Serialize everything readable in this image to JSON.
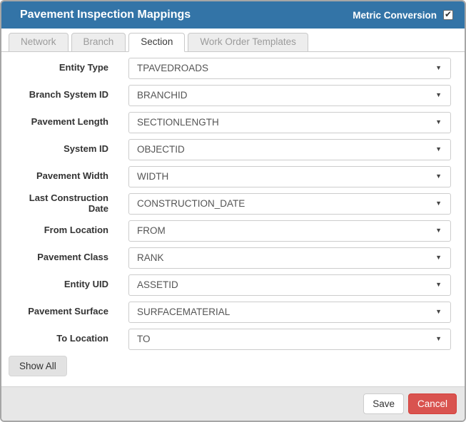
{
  "dialog": {
    "title": "Pavement Inspection Mappings",
    "metric_conversion_label": "Metric Conversion",
    "metric_conversion_checked": true
  },
  "tabs": [
    {
      "label": "Network",
      "active": false
    },
    {
      "label": "Branch",
      "active": false
    },
    {
      "label": "Section",
      "active": true
    },
    {
      "label": "Work Order Templates",
      "active": false
    }
  ],
  "form": {
    "fields": [
      {
        "label": "Entity Type",
        "value": "TPAVEDROADS"
      },
      {
        "label": "Branch System ID",
        "value": "BRANCHID"
      },
      {
        "label": "Pavement Length",
        "value": "SECTIONLENGTH"
      },
      {
        "label": "System ID",
        "value": "OBJECTID"
      },
      {
        "label": "Pavement Width",
        "value": "WIDTH"
      },
      {
        "label": "Last Construction Date",
        "value": "CONSTRUCTION_DATE"
      },
      {
        "label": "From Location",
        "value": "FROM"
      },
      {
        "label": "Pavement Class",
        "value": "RANK"
      },
      {
        "label": "Entity UID",
        "value": "ASSETID"
      },
      {
        "label": "Pavement Surface",
        "value": "SURFACEMATERIAL"
      },
      {
        "label": "To Location",
        "value": "TO"
      }
    ],
    "show_all_label": "Show All"
  },
  "footer": {
    "save_label": "Save",
    "cancel_label": "Cancel"
  },
  "icons": {
    "dropdown_arrow": "▼"
  },
  "colors": {
    "header_bg": "#3374A7",
    "cancel_bg": "#D9534F",
    "cancel_border": "#D43F3A"
  }
}
